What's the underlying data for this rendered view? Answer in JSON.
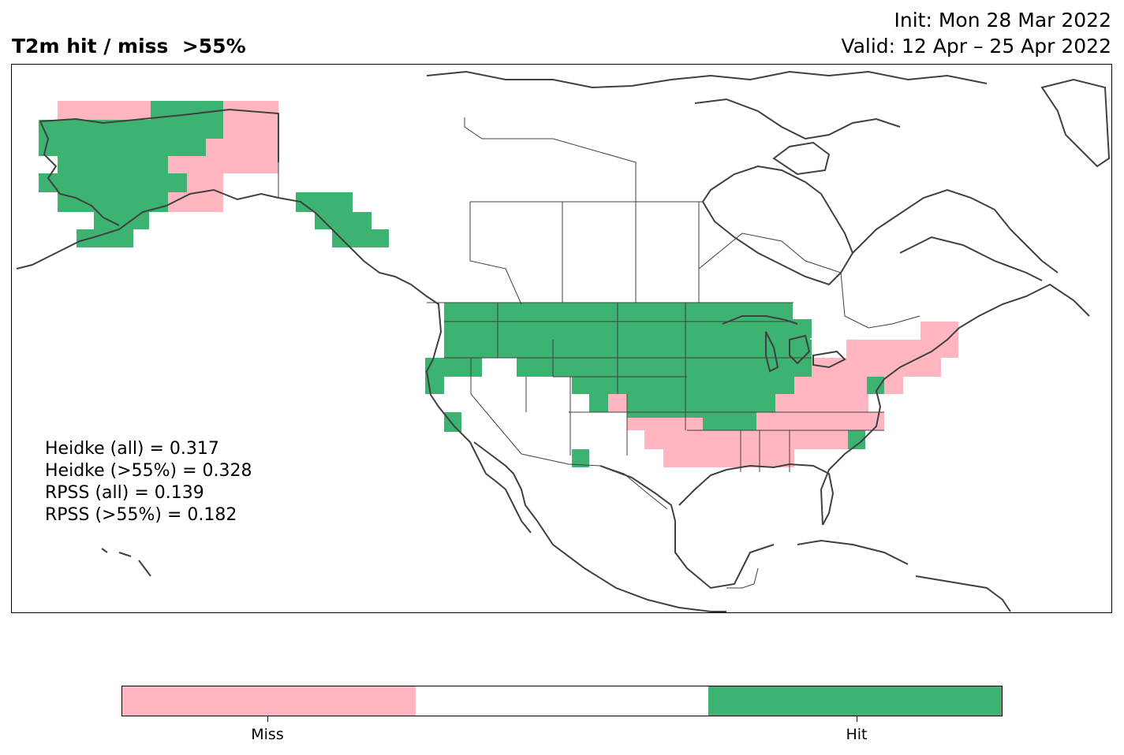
{
  "title": "T2m hit / miss  >55%",
  "init": "Init: Mon 28 Mar 2022",
  "valid": "Valid: 12 Apr – 25 Apr 2022",
  "stats": [
    "Heidke (all) = 0.317",
    "Heidke (>55%) = 0.328",
    "RPSS (all) = 0.139",
    "RPSS (>55%) = 0.182"
  ],
  "colorbar": {
    "colors": [
      "#ffb6c1",
      "#ffffff",
      "#3cb371"
    ],
    "labels": [
      "Miss",
      "Hit"
    ]
  },
  "map_data": {
    "hit_color": "#3cb371",
    "miss_color": "#ffb6c1",
    "coastline_color": "#404040"
  }
}
